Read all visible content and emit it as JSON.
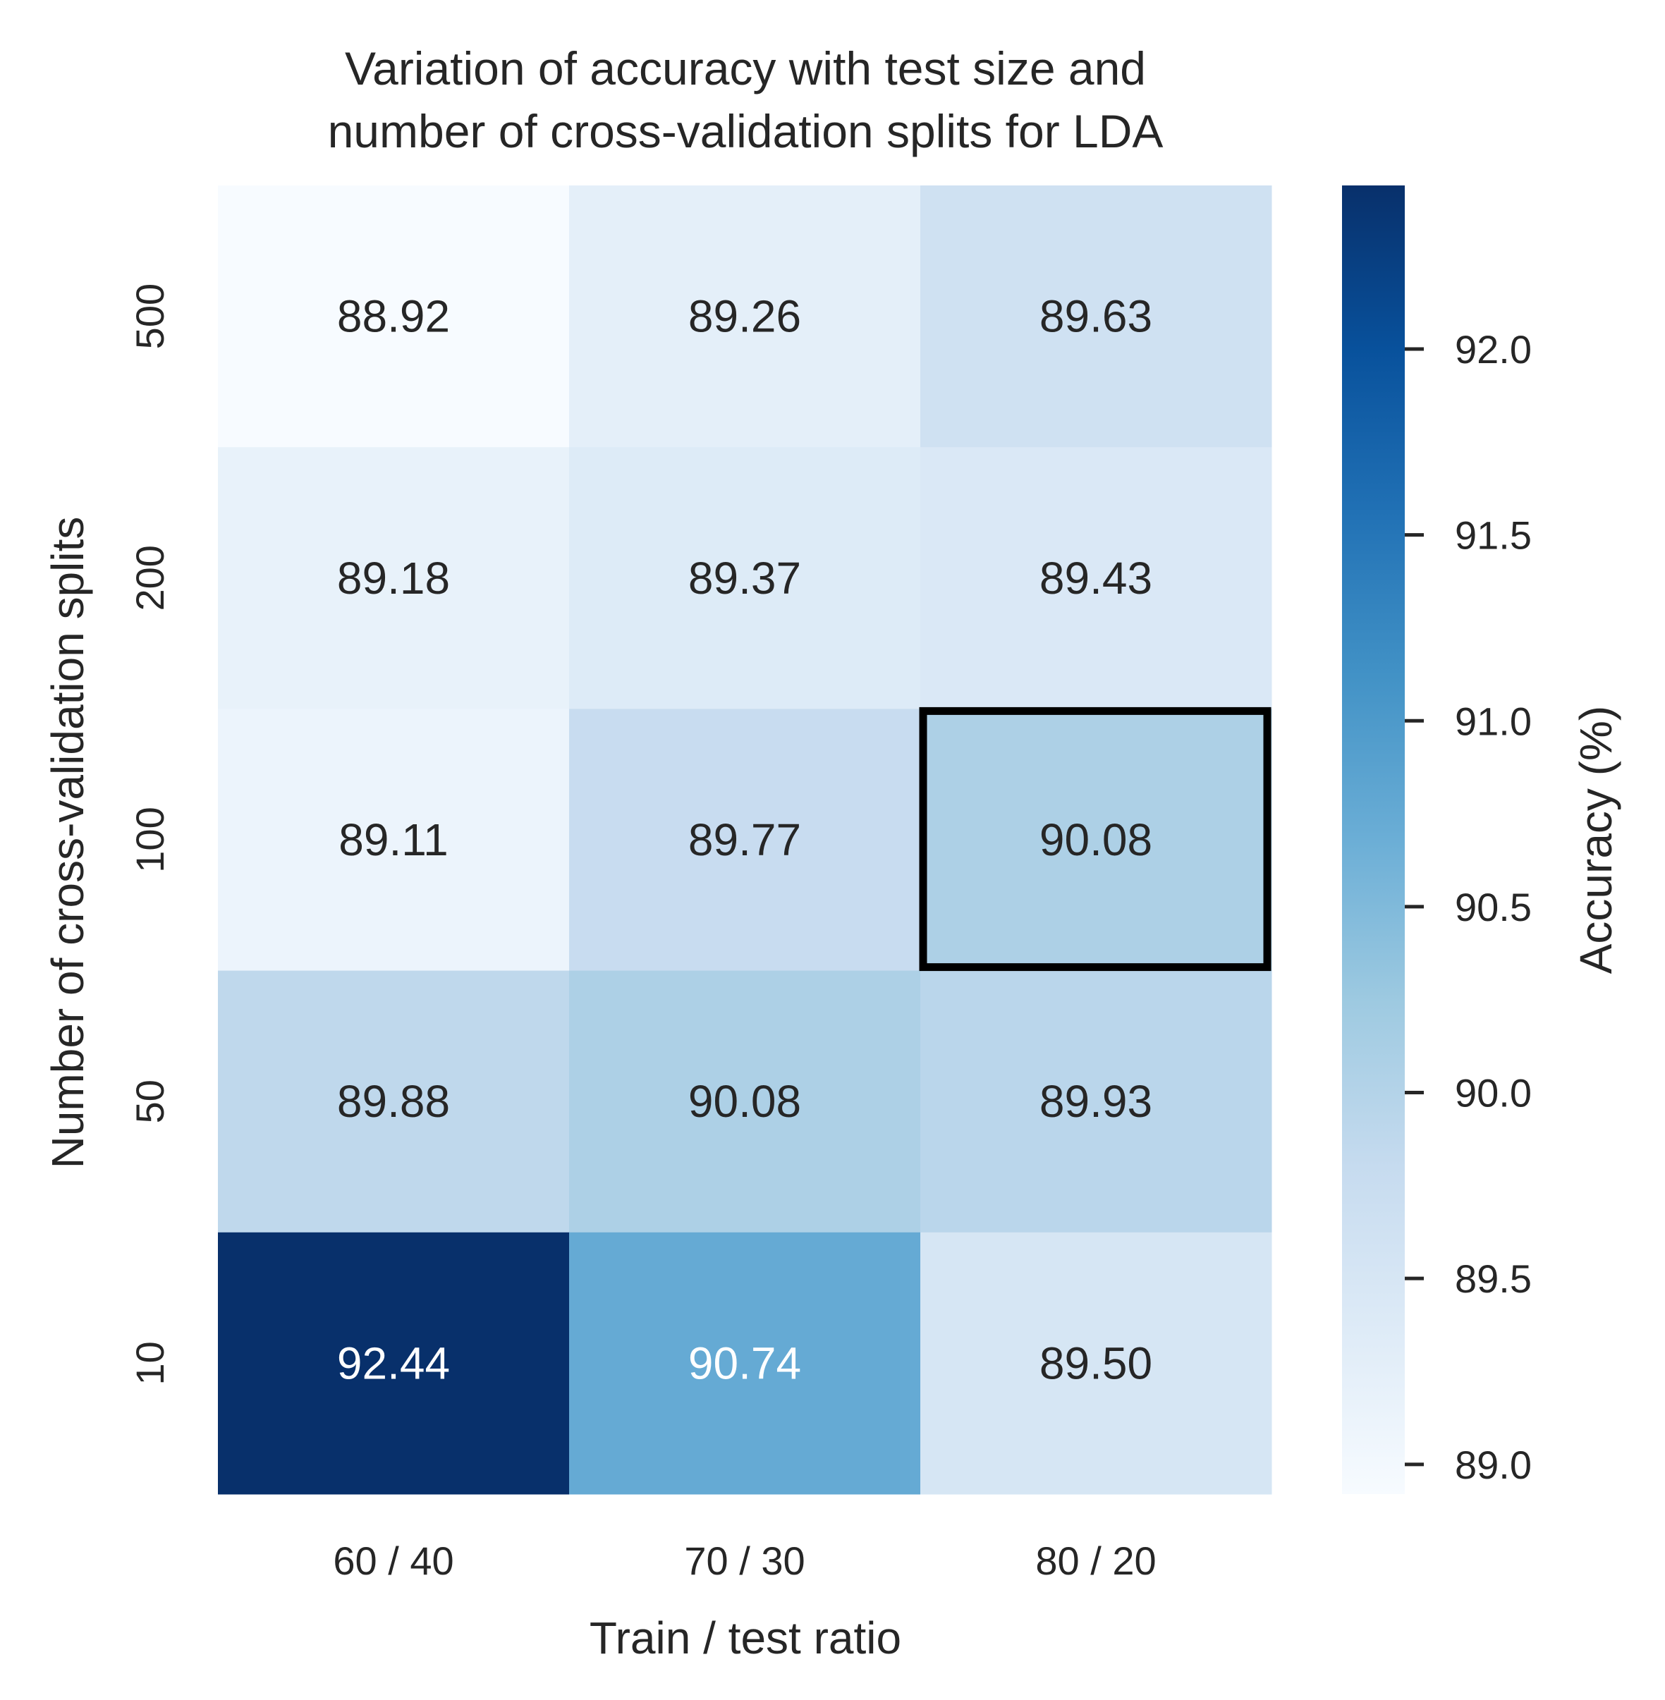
{
  "chart_data": {
    "type": "heatmap",
    "title": [
      "Variation of accuracy with test size and",
      "number of cross-validation splits for LDA"
    ],
    "xlabel": "Train / test ratio",
    "ylabel": "Number of cross-validation splits",
    "x_categories": [
      "60 / 40",
      "70 / 30",
      "80 / 20"
    ],
    "y_categories": [
      "500",
      "200",
      "100",
      "50",
      "10"
    ],
    "values": [
      [
        88.92,
        89.26,
        89.63
      ],
      [
        89.18,
        89.37,
        89.43
      ],
      [
        89.11,
        89.77,
        90.08
      ],
      [
        89.88,
        90.08,
        89.93
      ],
      [
        92.44,
        90.74,
        89.5
      ]
    ],
    "value_labels": [
      [
        "88.92",
        "89.26",
        "89.63"
      ],
      [
        "89.18",
        "89.37",
        "89.43"
      ],
      [
        "89.11",
        "89.77",
        "90.08"
      ],
      [
        "89.88",
        "90.08",
        "89.93"
      ],
      [
        "92.44",
        "90.74",
        "89.50"
      ]
    ],
    "colormap": "Blues",
    "color_range": [
      88.92,
      92.44
    ],
    "colorbar": {
      "label": "Accuracy (%)",
      "ticks": [
        89.0,
        89.5,
        90.0,
        90.5,
        91.0,
        91.5,
        92.0
      ],
      "tick_labels": [
        "89.0",
        "89.5",
        "90.0",
        "90.5",
        "91.0",
        "91.5",
        "92.0"
      ]
    },
    "highlighted_cell": {
      "row": "100",
      "column": "80 / 20",
      "value": "90.08"
    },
    "grid": false
  }
}
